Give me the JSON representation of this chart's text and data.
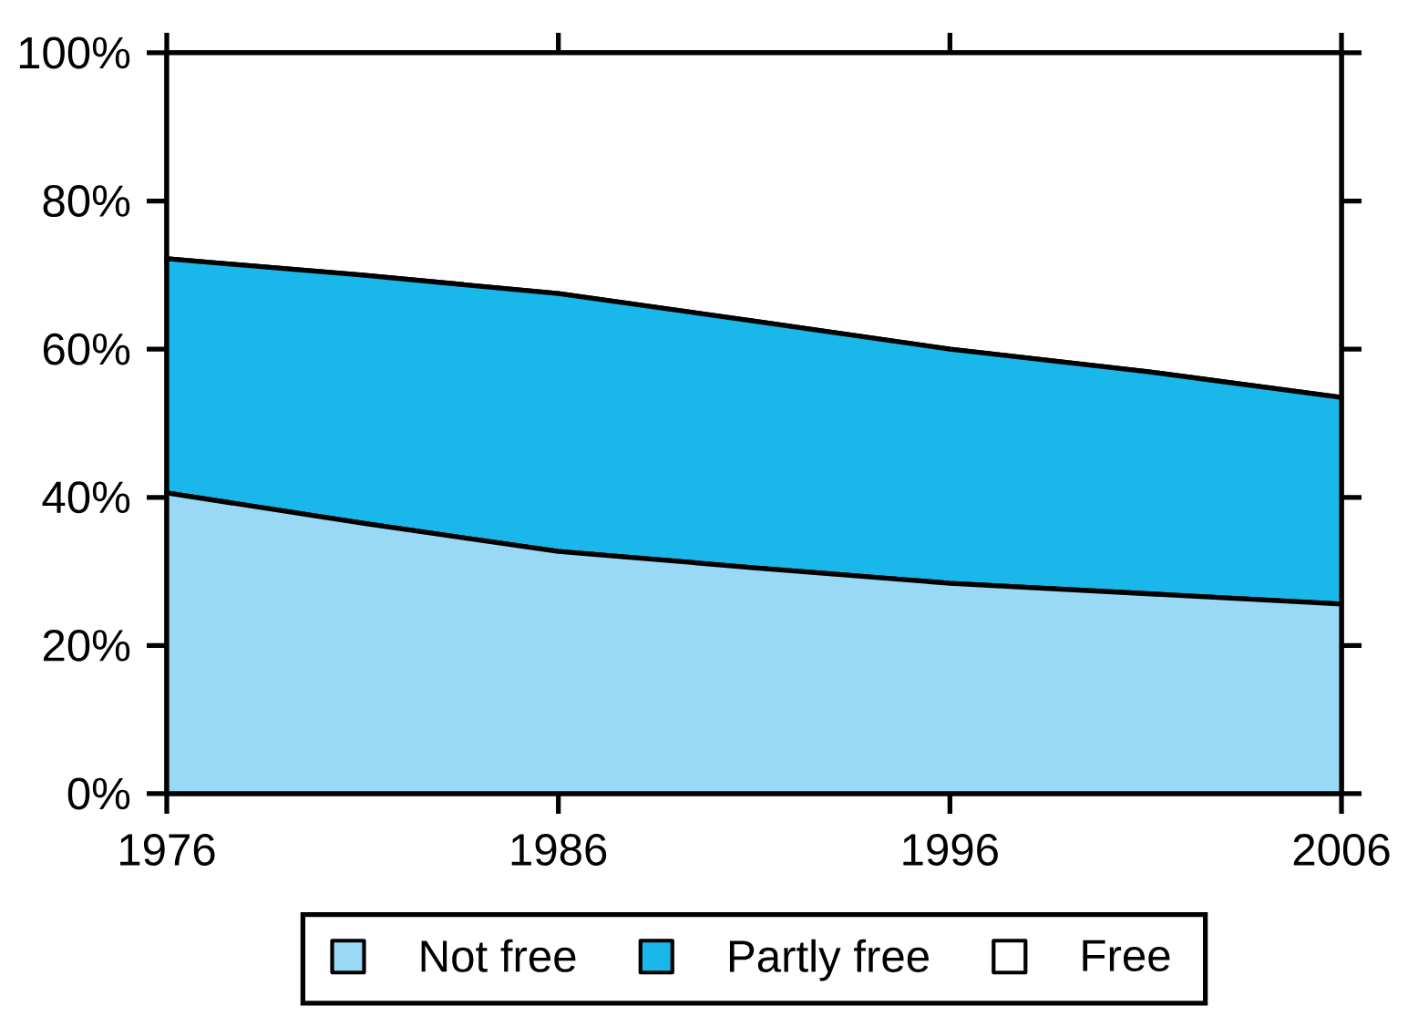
{
  "chart_data": {
    "type": "area",
    "stacked": true,
    "x": [
      1976,
      1981,
      1986,
      1991,
      1996,
      2001,
      2006
    ],
    "xlim": [
      1976,
      2006
    ],
    "xticks": [
      1976,
      1986,
      1996,
      2006
    ],
    "ylim": [
      0,
      100
    ],
    "yticks": [
      {
        "value": 0,
        "label": "0%"
      },
      {
        "value": 20,
        "label": "20%"
      },
      {
        "value": 40,
        "label": "40%"
      },
      {
        "value": 60,
        "label": "60%"
      },
      {
        "value": 80,
        "label": "80%"
      },
      {
        "value": 100,
        "label": "100%"
      }
    ],
    "legend": "bottom",
    "series": [
      {
        "name": "Not free",
        "color": "#99d9f5",
        "values": [
          40.6,
          36.5,
          32.7,
          30.5,
          28.4,
          27.0,
          25.6
        ]
      },
      {
        "name": "Partly free",
        "color": "#1ab8ea",
        "values": [
          31.6,
          33.5,
          34.8,
          33.3,
          31.6,
          30.0,
          27.9
        ]
      },
      {
        "name": "Free",
        "color": "#ffffff",
        "values": [
          27.8,
          30.0,
          32.5,
          36.2,
          40.0,
          43.0,
          46.5
        ]
      }
    ]
  }
}
